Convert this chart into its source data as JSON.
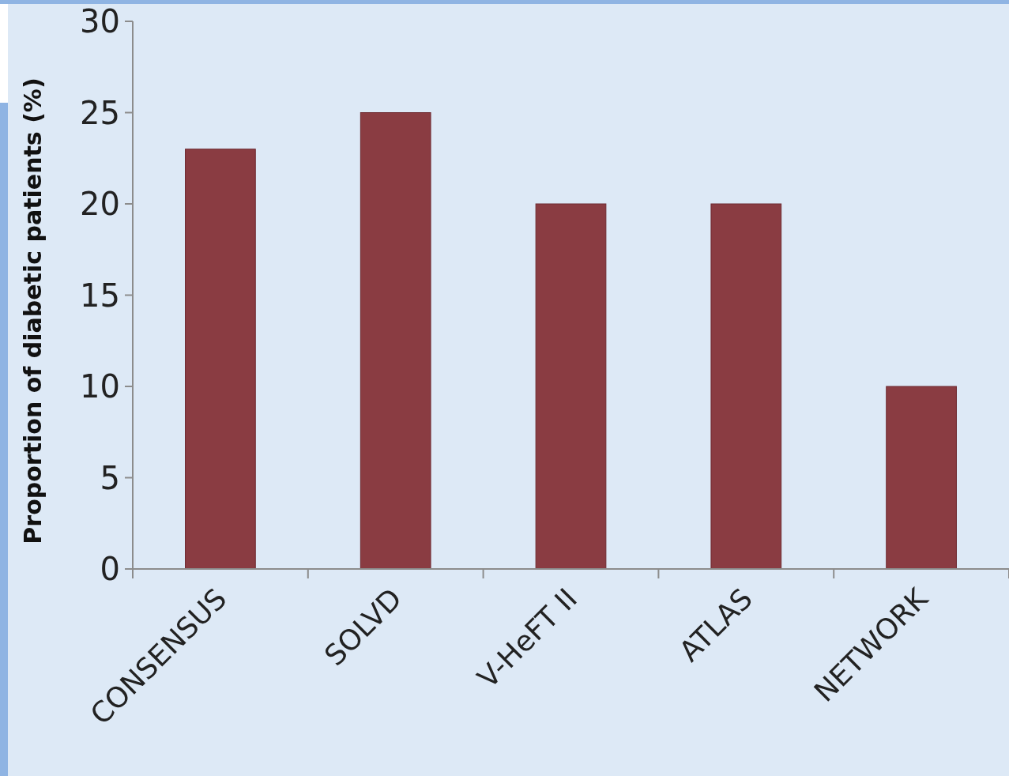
{
  "chart_data": {
    "type": "bar",
    "ylabel": "Proportion of diabetic patients (%)",
    "categories": [
      "CONSENSUS",
      "SOLVD",
      "V-HeFT II",
      "ATLAS",
      "NETWORK"
    ],
    "values": [
      23,
      25,
      20,
      20,
      10
    ],
    "color": "#8a3c42",
    "ylim": [
      0,
      30
    ],
    "yticks": [
      0,
      5,
      10,
      15,
      20,
      25,
      30
    ],
    "grid": false
  }
}
